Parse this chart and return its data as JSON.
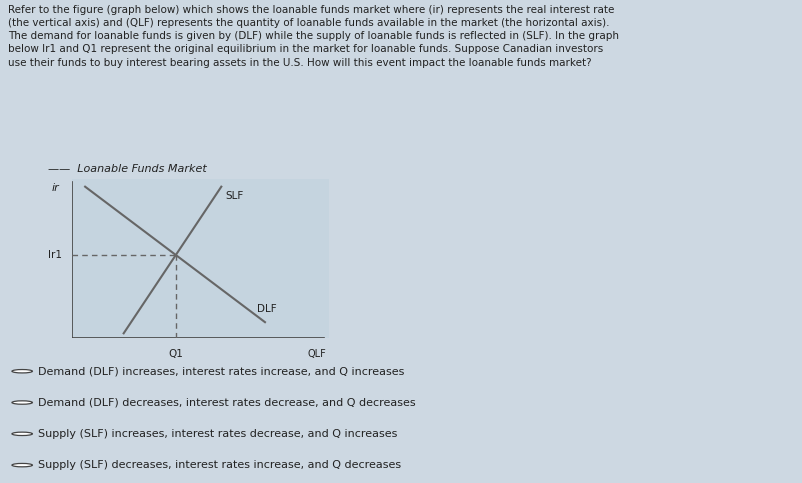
{
  "title_text": "Refer to the figure (graph below) which shows the loanable funds market where (ir) represents the real interest rate\n(the vertical axis) and (QLF) represents the quantity of loanable funds available in the market (the horizontal axis).\nThe demand for loanable funds is given by (DLF) while the supply of loanable funds is reflected in (SLF). In the graph\nbelow Ir1 and Q1 represent the original equilibrium in the market for loanable funds. Suppose Canadian investors\nuse their funds to buy interest bearing assets in the U.S. How will this event impact the loanable funds market?",
  "chart_title": "Loanable Funds Market",
  "supply_label": "SLF",
  "demand_label": "DLF",
  "ir_label": "ir",
  "ir1_label": "Ir1",
  "q1_label": "Q1",
  "qlf_label": "QLF",
  "options": [
    "Demand (DLF) increases, interest rates increase, and Q increases",
    "Demand (DLF) decreases, interest rates decrease, and Q decreases",
    "Supply (SLF) increases, interest rates decrease, and Q increases",
    "Supply (SLF) decreases, interest rates increase, and Q decreases"
  ],
  "selected_option": -1,
  "bg_color": "#cdd8e2",
  "line_color": "#666666",
  "text_color": "#222222",
  "dashed_color": "#666666",
  "chart_bg": "#c5d4df",
  "title_fontsize": 7.5,
  "option_fontsize": 8.0,
  "chart_title_fontsize": 8.0
}
